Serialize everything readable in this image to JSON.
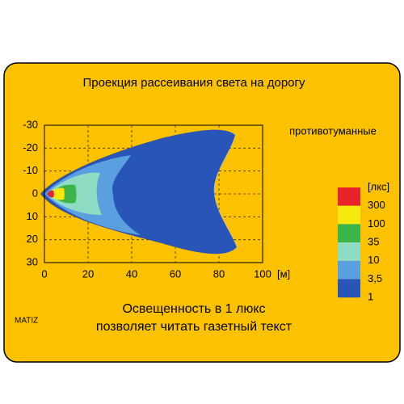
{
  "chart_data": {
    "type": "isolux",
    "title": "Проекция рассеивания света на дорогу",
    "legend_title": "противотуманные",
    "x_unit": "[м]",
    "xlim": [
      0,
      100
    ],
    "xticks": [
      0,
      20,
      40,
      60,
      80,
      100
    ],
    "ylim": [
      30,
      -30
    ],
    "yticks": [
      -30,
      -20,
      -10,
      0,
      10,
      20,
      30
    ],
    "grid": true,
    "scale_title": "[лкс]",
    "levels": [
      300,
      100,
      35,
      10,
      {
        "value": 3.5,
        "label": "3,5"
      },
      1
    ],
    "colors": [
      "#e8232a",
      "#f5e90f",
      "#3bb54a",
      "#8fdcc4",
      "#5aa0e0",
      "#2a55b8"
    ],
    "caption": [
      "Освещенность в 1 люкс",
      "позволяет читать газетный текст"
    ],
    "model": "MATIZ"
  }
}
